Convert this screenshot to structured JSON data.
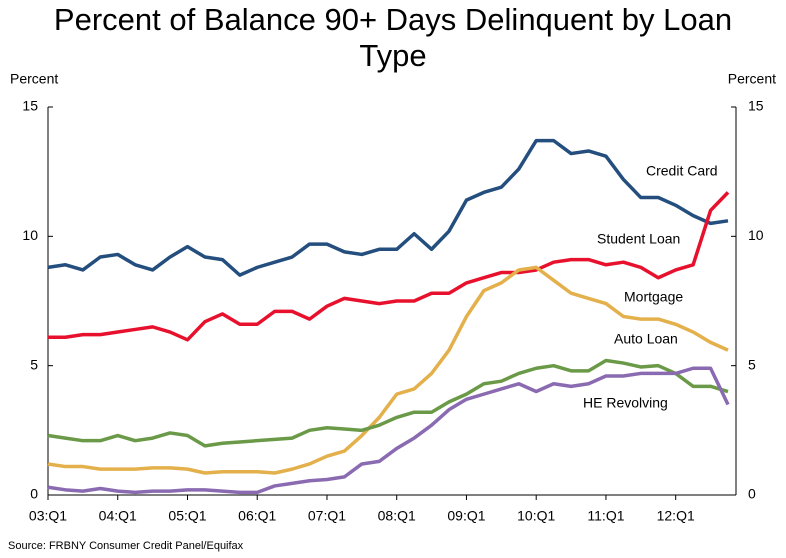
{
  "chart_data": {
    "type": "line",
    "title": "Percent of Balance 90+ Days Delinquent by Loan Type",
    "y_label": "Percent",
    "y2_label": "Percent",
    "source": "Source: FRBNY Consumer Credit Panel/Equifax",
    "categories": [
      "03:Q1",
      null,
      null,
      null,
      "04:Q1",
      null,
      null,
      null,
      "05:Q1",
      null,
      null,
      null,
      "06:Q1",
      null,
      null,
      null,
      "07:Q1",
      null,
      null,
      null,
      "08:Q1",
      null,
      null,
      null,
      "09:Q1",
      null,
      null,
      null,
      "10:Q1",
      null,
      null,
      null,
      "11:Q1",
      null,
      null,
      null,
      "12:Q1",
      null,
      null,
      null
    ],
    "ylim": [
      0,
      15
    ],
    "yticks": [
      0,
      5,
      10,
      15
    ],
    "y2lim": [
      0,
      15
    ],
    "y2ticks": [
      0,
      5,
      10,
      15
    ],
    "grid": false,
    "series": [
      {
        "name": "Credit Card",
        "color": "#234e7d",
        "values": [
          8.8,
          8.9,
          8.7,
          9.2,
          9.3,
          8.9,
          8.7,
          9.2,
          9.6,
          9.2,
          9.1,
          8.5,
          8.8,
          9.0,
          9.2,
          9.7,
          9.7,
          9.4,
          9.3,
          9.5,
          9.5,
          10.1,
          9.5,
          10.2,
          11.4,
          11.7,
          11.9,
          12.6,
          13.7,
          13.7,
          13.2,
          13.3,
          13.1,
          12.2,
          11.5,
          11.5,
          11.2,
          10.8,
          10.5,
          10.6
        ]
      },
      {
        "name": "Student Loan",
        "color": "#e8112d",
        "values": [
          6.1,
          6.1,
          6.2,
          6.2,
          6.3,
          6.4,
          6.5,
          6.3,
          6.0,
          6.7,
          7.0,
          6.6,
          6.6,
          7.1,
          7.1,
          6.8,
          7.3,
          7.6,
          7.5,
          7.4,
          7.5,
          7.5,
          7.8,
          7.8,
          8.2,
          8.4,
          8.6,
          8.6,
          8.7,
          9.0,
          9.1,
          9.1,
          8.9,
          9.0,
          8.8,
          8.4,
          8.7,
          8.9,
          11.0,
          11.7
        ]
      },
      {
        "name": "Mortgage",
        "color": "#e3b04b",
        "values": [
          1.2,
          1.1,
          1.1,
          1.0,
          1.0,
          1.0,
          1.05,
          1.05,
          1.0,
          0.85,
          0.9,
          0.9,
          0.9,
          0.85,
          1.0,
          1.2,
          1.5,
          1.7,
          2.3,
          3.0,
          3.9,
          4.1,
          4.7,
          5.6,
          6.9,
          7.9,
          8.2,
          8.7,
          8.8,
          8.3,
          7.8,
          7.6,
          7.4,
          6.9,
          6.8,
          6.8,
          6.6,
          6.3,
          5.9,
          5.6
        ]
      },
      {
        "name": "Auto Loan",
        "color": "#6a9a48",
        "values": [
          2.3,
          2.2,
          2.1,
          2.1,
          2.3,
          2.1,
          2.2,
          2.4,
          2.3,
          1.9,
          2.0,
          2.05,
          2.1,
          2.15,
          2.2,
          2.5,
          2.6,
          2.55,
          2.5,
          2.7,
          3.0,
          3.2,
          3.2,
          3.6,
          3.9,
          4.3,
          4.4,
          4.7,
          4.9,
          5.0,
          4.8,
          4.8,
          5.2,
          5.1,
          4.95,
          5.0,
          4.7,
          4.2,
          4.2,
          4.0
        ]
      },
      {
        "name": "HE Revolving",
        "color": "#8a6bb1",
        "values": [
          0.3,
          0.2,
          0.15,
          0.25,
          0.15,
          0.1,
          0.15,
          0.15,
          0.2,
          0.2,
          0.15,
          0.1,
          0.1,
          0.35,
          0.45,
          0.55,
          0.6,
          0.7,
          1.2,
          1.3,
          1.8,
          2.2,
          2.7,
          3.3,
          3.7,
          3.9,
          4.1,
          4.3,
          4.0,
          4.3,
          4.2,
          4.3,
          4.6,
          4.6,
          4.7,
          4.7,
          4.7,
          4.9,
          4.9,
          3.5
        ]
      }
    ]
  }
}
